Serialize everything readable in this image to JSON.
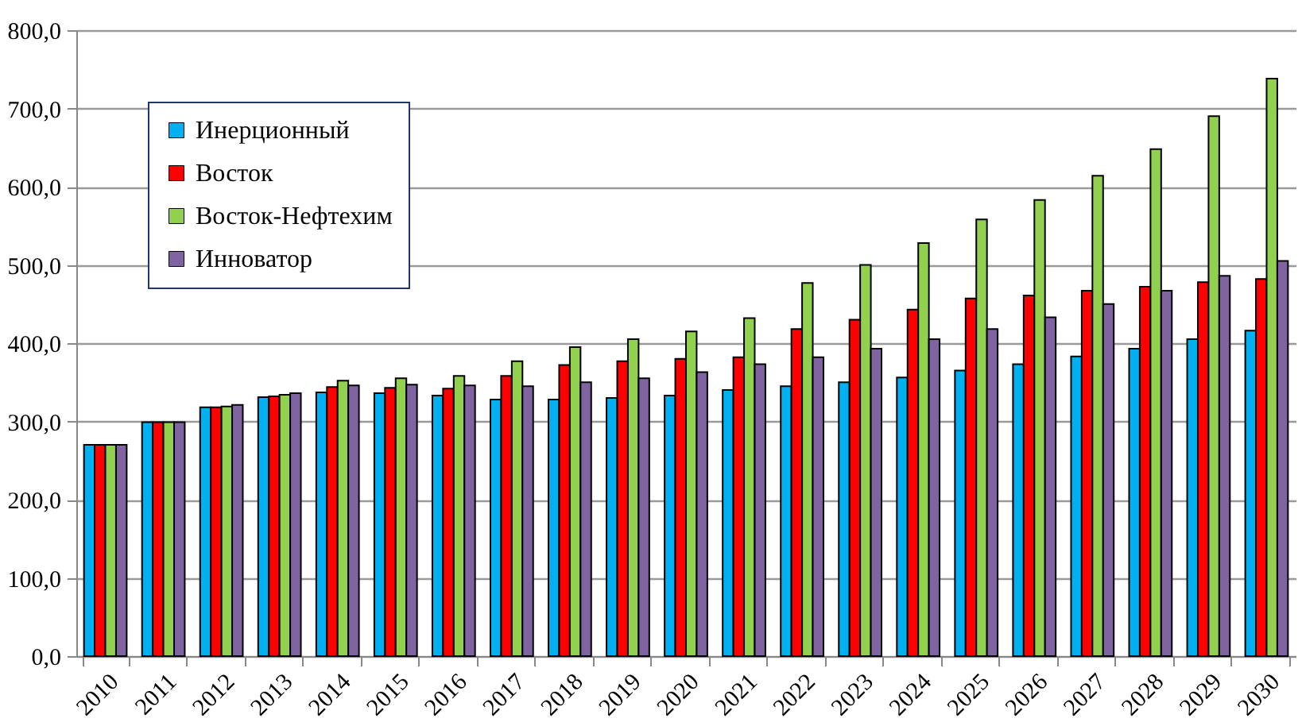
{
  "chart_data": {
    "type": "bar",
    "categories": [
      "2010",
      "2011",
      "2012",
      "2013",
      "2014",
      "2015",
      "2016",
      "2017",
      "2018",
      "2019",
      "2020",
      "2021",
      "2022",
      "2023",
      "2024",
      "2025",
      "2026",
      "2027",
      "2028",
      "2029",
      "2030"
    ],
    "series": [
      {
        "name": "Инерционный",
        "color": "#00b0f0",
        "values": [
          270,
          299,
          318,
          331,
          337,
          336,
          333,
          328,
          328,
          330,
          333,
          340,
          345,
          350,
          356,
          365,
          373,
          383,
          393,
          405,
          416
        ]
      },
      {
        "name": "Восток",
        "color": "#ff0000",
        "values": [
          270,
          299,
          318,
          332,
          344,
          343,
          342,
          358,
          372,
          377,
          380,
          382,
          418,
          430,
          443,
          457,
          461,
          467,
          472,
          478,
          482
        ]
      },
      {
        "name": "Восток-Нефтехим",
        "color": "#92d050",
        "values": [
          270,
          299,
          319,
          334,
          352,
          355,
          358,
          377,
          395,
          405,
          415,
          432,
          477,
          500,
          528,
          558,
          583,
          614,
          648,
          690,
          738
        ]
      },
      {
        "name": "Инноватор",
        "color": "#8064a2",
        "values": [
          270,
          299,
          321,
          336,
          346,
          347,
          346,
          345,
          350,
          355,
          363,
          373,
          382,
          393,
          405,
          418,
          433,
          450,
          467,
          486,
          505
        ]
      }
    ],
    "ylim": [
      0,
      800
    ],
    "yticks": [
      {
        "value": 0,
        "label": "0,0"
      },
      {
        "value": 100,
        "label": "100,0"
      },
      {
        "value": 200,
        "label": "200,0"
      },
      {
        "value": 300,
        "label": "300,0"
      },
      {
        "value": 400,
        "label": "400,0"
      },
      {
        "value": 500,
        "label": "500,0"
      },
      {
        "value": 600,
        "label": "600,0"
      },
      {
        "value": 700,
        "label": "700,0"
      },
      {
        "value": 800,
        "label": "800,0"
      }
    ],
    "grid": "y",
    "legend": "top left"
  }
}
